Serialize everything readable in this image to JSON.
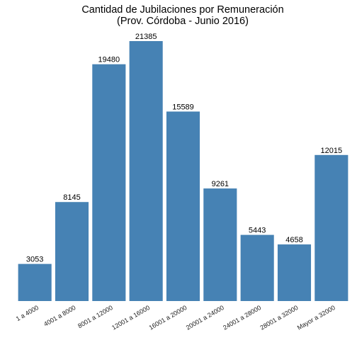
{
  "chart_data": {
    "type": "bar",
    "title": "Cantidad de Jubilaciones por Remuneración",
    "subtitle": "(Prov. Córdoba - Junio 2016)",
    "xlabel": "",
    "ylabel": "",
    "categories": [
      "1 a 4000",
      "4001 a 8000",
      "8001 a 12000",
      "12001 a 16000",
      "16001 a 20000",
      "20001 a 24000",
      "24001 a 28000",
      "28001 a 32000",
      "Mayor a 32000"
    ],
    "values": [
      3053,
      8145,
      19480,
      21385,
      15589,
      9261,
      5443,
      4658,
      12015
    ],
    "data_labels": [
      "3053",
      "8145",
      "19480",
      "21385",
      "15589",
      "9261",
      "5443",
      "4658",
      "12015"
    ],
    "ylim": [
      0,
      22500
    ],
    "grid": false,
    "legend": "none",
    "bar_color": "#4682B4"
  }
}
